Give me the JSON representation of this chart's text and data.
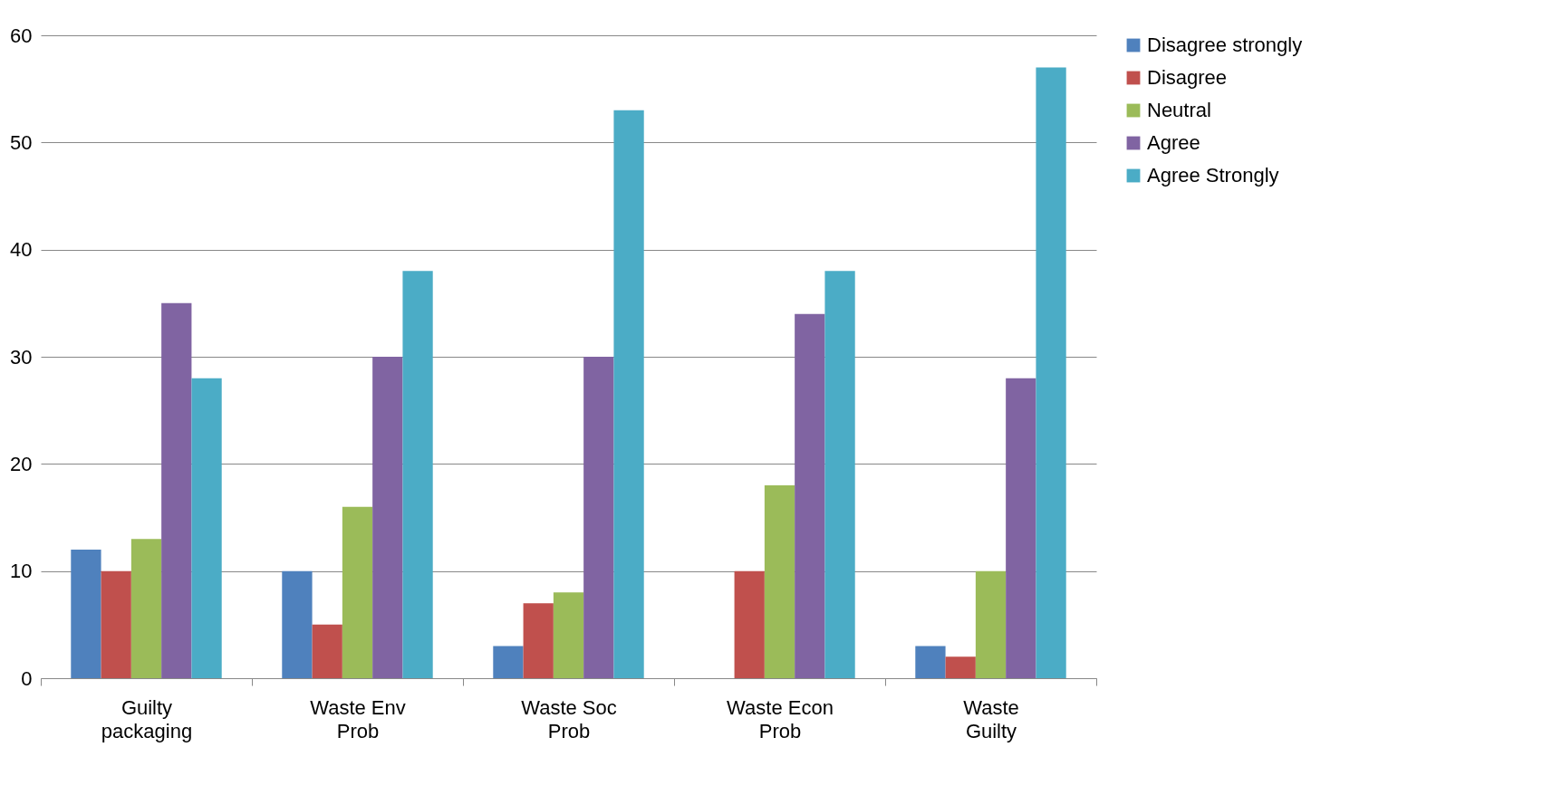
{
  "chart_data": {
    "type": "bar",
    "categories": [
      "Guilty packaging",
      "Waste Env Prob",
      "Waste Soc Prob",
      "Waste Econ Prob",
      "Waste Guilty"
    ],
    "series": [
      {
        "name": "Disagree strongly",
        "color": "#4f81bd",
        "values": [
          12,
          10,
          3,
          0,
          3
        ]
      },
      {
        "name": "Disagree",
        "color": "#c0504d",
        "values": [
          10,
          5,
          7,
          10,
          2
        ]
      },
      {
        "name": "Neutral",
        "color": "#9bbb59",
        "values": [
          13,
          16,
          8,
          18,
          10
        ]
      },
      {
        "name": "Agree",
        "color": "#8064a2",
        "values": [
          35,
          30,
          30,
          34,
          28
        ]
      },
      {
        "name": "Agree Strongly",
        "color": "#4bacc6",
        "values": [
          28,
          38,
          53,
          38,
          57
        ]
      }
    ],
    "ylim": [
      0,
      60
    ],
    "yticks": [
      0,
      10,
      20,
      30,
      40,
      50,
      60
    ],
    "grid": "y",
    "legend": "right"
  }
}
